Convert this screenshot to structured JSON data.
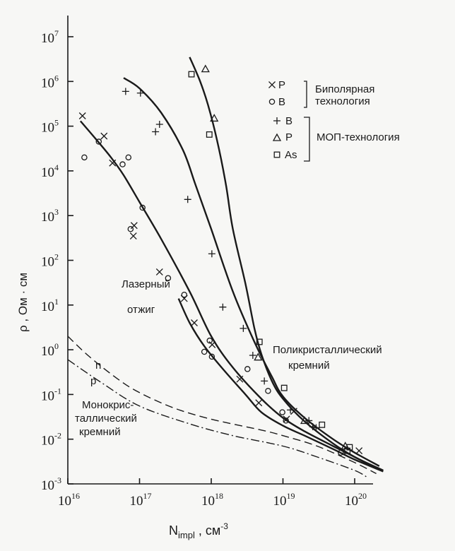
{
  "chart_data": {
    "type": "scatter",
    "xlabel_main": "N",
    "xlabel_sub": "impl",
    "xlabel_unit": " , см",
    "xlabel_unit_exp": "-3",
    "ylabel": "ρ , Ом · см",
    "x_scale": "log",
    "y_scale": "log",
    "xlim": [
      1e+16,
      3e+20
    ],
    "ylim": [
      0.001,
      30000000
    ],
    "x_ticks": [
      {
        "base": "10",
        "exp": "16",
        "value": 1e+16
      },
      {
        "base": "10",
        "exp": "17",
        "value": 1e+17
      },
      {
        "base": "10",
        "exp": "18",
        "value": 1e+18
      },
      {
        "base": "10",
        "exp": "19",
        "value": 1e+19
      },
      {
        "base": "10",
        "exp": "20",
        "value": 1e+20
      }
    ],
    "y_ticks": [
      {
        "base": "10",
        "exp": "-3",
        "value": 0.001
      },
      {
        "base": "10",
        "exp": "-2",
        "value": 0.01
      },
      {
        "base": "10",
        "exp": "-1",
        "value": 0.1
      },
      {
        "base": "10",
        "exp": "0",
        "value": 1
      },
      {
        "base": "10",
        "exp": "1",
        "value": 10
      },
      {
        "base": "10",
        "exp": "2",
        "value": 100
      },
      {
        "base": "10",
        "exp": "3",
        "value": 1000
      },
      {
        "base": "10",
        "exp": "4",
        "value": 10000
      },
      {
        "base": "10",
        "exp": "5",
        "value": 100000
      },
      {
        "base": "10",
        "exp": "6",
        "value": 1000000
      },
      {
        "base": "10",
        "exp": "7",
        "value": 10000000
      }
    ],
    "legend": {
      "placement": "top-right",
      "groups": [
        {
          "label_lines": [
            "Биполярная",
            "технология"
          ],
          "entries": [
            {
              "marker": "x",
              "label": "P"
            },
            {
              "marker": "circle",
              "label": "B"
            }
          ]
        },
        {
          "label_lines": [
            "МОП-технология"
          ],
          "entries": [
            {
              "marker": "plus",
              "label": "B"
            },
            {
              "marker": "triangle",
              "label": "P"
            },
            {
              "marker": "square",
              "label": "As"
            }
          ]
        }
      ]
    },
    "annotations": {
      "laser": [
        "Лазерный",
        "отжиг"
      ],
      "poly": [
        "Поликристаллический",
        "кремний"
      ],
      "mono": [
        "Монокрис-",
        "таллический",
        "кремний"
      ],
      "n_label": "n",
      "p_label": "p"
    },
    "series": [
      {
        "marker": "x",
        "points": [
          [
            1.6e+16,
            170000
          ],
          [
            3.2e+16,
            60000
          ],
          [
            4.2e+16,
            15000
          ],
          [
            8.4e+16,
            600
          ],
          [
            8.2e+16,
            350
          ],
          [
            1.9e+17,
            55
          ],
          [
            4.2e+17,
            14
          ],
          [
            5.8e+17,
            4
          ],
          [
            1.03e+18,
            1.3
          ],
          [
            2.5e+18,
            0.22
          ],
          [
            4.6e+18,
            0.065
          ],
          [
            1.12e+19,
            0.028
          ],
          [
            1.42e+19,
            0.042
          ],
          [
            1.15e+20,
            0.0055
          ]
        ]
      },
      {
        "marker": "circle",
        "points": [
          [
            1.7e+16,
            20000
          ],
          [
            2.7e+16,
            45000
          ],
          [
            5.8e+16,
            14000
          ],
          [
            7e+16,
            20000
          ],
          [
            1.1e+17,
            1500
          ],
          [
            7.5e+16,
            500
          ],
          [
            2.5e+17,
            40
          ],
          [
            4.2e+17,
            17
          ],
          [
            9.5e+17,
            1.6
          ],
          [
            8e+17,
            0.9
          ],
          [
            1.02e+18,
            0.7
          ],
          [
            3.2e+18,
            0.37
          ],
          [
            6.2e+18,
            0.12
          ],
          [
            9.8e+18,
            0.04
          ],
          [
            1.1e+19,
            0.026
          ],
          [
            6.4e+19,
            0.005
          ]
        ]
      },
      {
        "marker": "plus",
        "points": [
          [
            6.4e+16,
            600000
          ],
          [
            1.03e+17,
            550000
          ],
          [
            1.67e+17,
            75000
          ],
          [
            1.9e+17,
            110000
          ],
          [
            4.7e+17,
            2300
          ],
          [
            1.02e+18,
            140
          ],
          [
            1.45e+18,
            9
          ],
          [
            2.8e+18,
            3
          ],
          [
            3.8e+18,
            0.75
          ],
          [
            5.5e+18,
            0.2
          ],
          [
            1.27e+19,
            0.045
          ],
          [
            2.3e+19,
            0.026
          ],
          [
            2.6e+19,
            0.019
          ],
          [
            2.9e+19,
            0.018
          ]
        ]
      },
      {
        "marker": "triangle",
        "points": [
          [
            8.3e+17,
            1900000
          ],
          [
            1.1e+18,
            150000
          ],
          [
            4.5e+18,
            0.68
          ],
          [
            2e+19,
            0.026
          ],
          [
            7.4e+19,
            0.007
          ]
        ]
      },
      {
        "marker": "square",
        "points": [
          [
            5.3e+17,
            1450000
          ],
          [
            9.4e+17,
            65000
          ],
          [
            4.7e+18,
            1.5
          ],
          [
            1.04e+19,
            0.14
          ],
          [
            3.5e+19,
            0.021
          ],
          [
            8.5e+19,
            0.0066
          ],
          [
            7.9e+19,
            0.0055
          ]
        ]
      }
    ],
    "curves": [
      {
        "style": "solid",
        "points": [
          [
            1.5e+16,
            130000
          ],
          [
            2.5e+16,
            50000
          ],
          [
            4e+16,
            20000
          ],
          [
            6e+16,
            8000
          ],
          [
            1e+17,
            2000
          ],
          [
            2e+17,
            300
          ],
          [
            5e+17,
            20
          ],
          [
            1e+18,
            2
          ],
          [
            2e+18,
            0.4
          ],
          [
            5e+18,
            0.08
          ],
          [
            1e+19,
            0.03
          ],
          [
            2e+19,
            0.015
          ],
          [
            5e+19,
            0.007
          ],
          [
            1e+20,
            0.004
          ],
          [
            2e+20,
            0.0022
          ]
        ]
      },
      {
        "style": "solid",
        "points": [
          [
            6e+16,
            1200000
          ],
          [
            1e+17,
            700000
          ],
          [
            2e+17,
            200000
          ],
          [
            4e+17,
            30000
          ],
          [
            6e+17,
            5000
          ],
          [
            1e+18,
            500
          ],
          [
            2e+18,
            20
          ],
          [
            4e+18,
            1.5
          ],
          [
            7e+18,
            0.25
          ],
          [
            1e+19,
            0.09
          ],
          [
            2e+19,
            0.03
          ],
          [
            5e+19,
            0.01
          ],
          [
            1e+20,
            0.005
          ],
          [
            2.2e+20,
            0.0025
          ]
        ]
      },
      {
        "style": "solid",
        "points": [
          [
            5e+17,
            3500000
          ],
          [
            7e+17,
            1000000
          ],
          [
            9e+17,
            300000
          ],
          [
            1.2e+18,
            50000
          ],
          [
            1.6e+18,
            5000
          ],
          [
            2e+18,
            500
          ],
          [
            3e+18,
            30
          ],
          [
            4e+18,
            3
          ],
          [
            5e+18,
            0.8
          ],
          [
            7e+18,
            0.2
          ],
          [
            1e+19,
            0.08
          ],
          [
            2e+19,
            0.025
          ],
          [
            5e+19,
            0.008
          ],
          [
            1e+20,
            0.004
          ],
          [
            2.5e+20,
            0.002
          ]
        ]
      },
      {
        "style": "solid",
        "points": [
          [
            3.5e+17,
            14
          ],
          [
            5e+17,
            4
          ],
          [
            8e+17,
            1.2
          ],
          [
            1.5e+18,
            0.35
          ],
          [
            3e+18,
            0.1
          ],
          [
            5e+18,
            0.04
          ],
          [
            1e+19,
            0.02
          ],
          [
            2e+19,
            0.012
          ],
          [
            5e+19,
            0.006
          ],
          [
            1e+20,
            0.0035
          ],
          [
            2.5e+20,
            0.0019
          ]
        ]
      },
      {
        "style": "dash",
        "points": [
          [
            1e+16,
            2
          ],
          [
            2e+16,
            0.7
          ],
          [
            5e+16,
            0.22
          ],
          [
            1e+17,
            0.11
          ],
          [
            3e+17,
            0.05
          ],
          [
            1e+18,
            0.028
          ],
          [
            5e+18,
            0.016
          ],
          [
            1e+19,
            0.012
          ],
          [
            3e+19,
            0.007
          ],
          [
            1e+20,
            0.003
          ],
          [
            2e+20,
            0.0017
          ]
        ]
      },
      {
        "style": "dashdot",
        "points": [
          [
            1e+16,
            0.6
          ],
          [
            3e+16,
            0.18
          ],
          [
            1e+17,
            0.055
          ],
          [
            5e+17,
            0.022
          ],
          [
            2e+18,
            0.012
          ],
          [
            1e+19,
            0.007
          ],
          [
            3e+19,
            0.004
          ],
          [
            1e+20,
            0.002
          ],
          [
            1.5e+20,
            0.0014
          ]
        ]
      }
    ]
  }
}
